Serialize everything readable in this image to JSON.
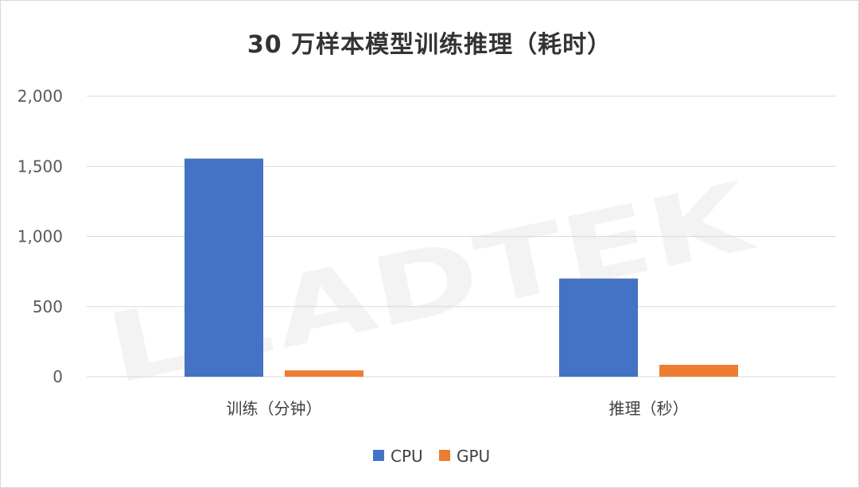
{
  "chart_data": {
    "type": "bar",
    "title": "30 万样本模型训练推理（耗时）",
    "categories": [
      "训练（分钟）",
      "推理（秒）"
    ],
    "series": [
      {
        "name": "CPU",
        "color": "#4472c4",
        "values": [
          1555,
          700
        ]
      },
      {
        "name": "GPU",
        "color": "#ed7d31",
        "values": [
          45,
          85
        ]
      }
    ],
    "ylim": [
      0,
      2000
    ],
    "yticks": [
      "0",
      "500",
      "1,000",
      "1,500",
      "2,000"
    ],
    "ytick_values": [
      0,
      500,
      1000,
      1500,
      2000
    ],
    "grid": true,
    "legend_position": "bottom",
    "watermark": "LEADTEK"
  }
}
